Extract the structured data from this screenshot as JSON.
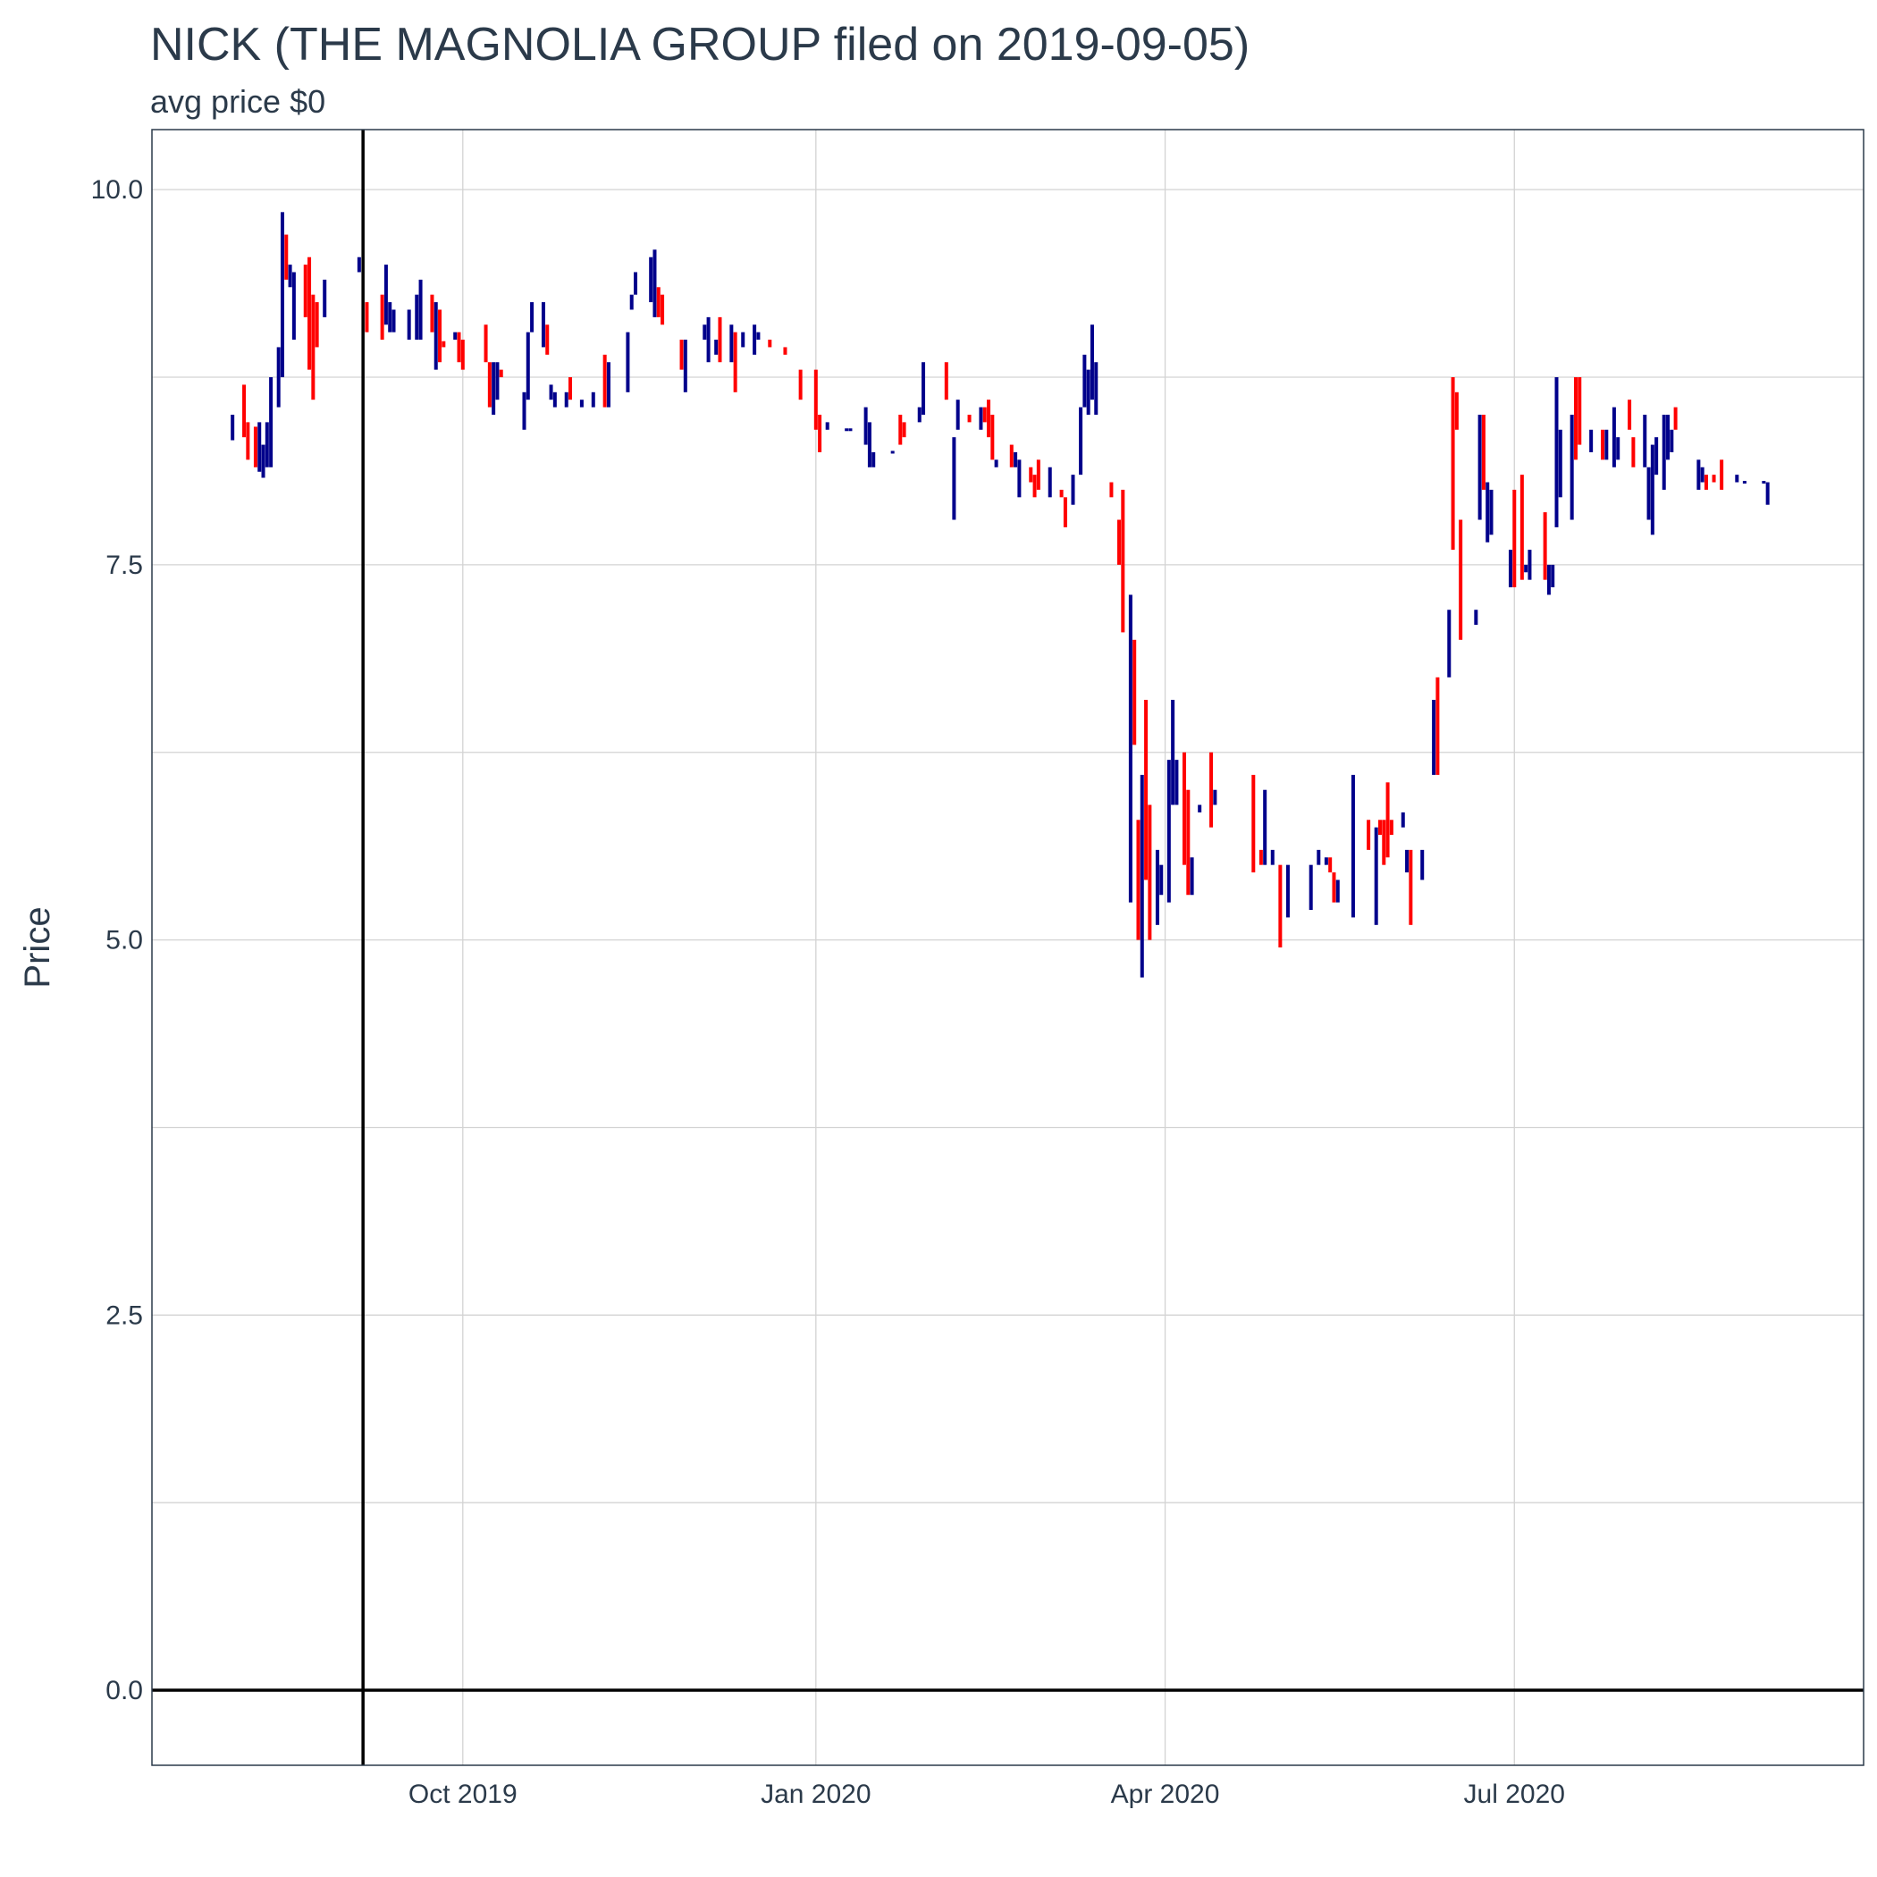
{
  "chart_data": {
    "type": "candlestick",
    "title": "NICK (THE MAGNOLIA GROUP filed on 2019-09-05)",
    "subtitle": "avg price $0",
    "xlabel": "",
    "ylabel": "Price",
    "x_ticks": [
      "Oct 2019",
      "Jan 2020",
      "Apr 2020",
      "Jul 2020"
    ],
    "x_tick_dates": [
      "2019-10-01",
      "2020-01-01",
      "2020-04-01",
      "2020-07-01"
    ],
    "y_ticks": [
      "0.0",
      "2.5",
      "5.0",
      "7.5",
      "10.0"
    ],
    "y_tick_values": [
      0,
      2.5,
      5,
      7.5,
      10
    ],
    "xlim": [
      "2019-07-12",
      "2020-09-30"
    ],
    "ylim": [
      -0.5,
      10.4
    ],
    "grid": true,
    "reference_lines": {
      "vertical_date": "2019-09-05",
      "horizontal_value": 0
    },
    "colors": {
      "up": "#00008b",
      "down": "#ff0000",
      "reference": "#000000",
      "grid": "#d3d3d3",
      "text": "#2b3a4a",
      "border": "#2b3a4a"
    },
    "bars": [
      [
        "2019-08-02",
        8.5,
        8.33,
        "up"
      ],
      [
        "2019-08-05",
        8.7,
        8.35,
        "down"
      ],
      [
        "2019-08-06",
        8.45,
        8.2,
        "down"
      ],
      [
        "2019-08-08",
        8.42,
        8.15,
        "down"
      ],
      [
        "2019-08-09",
        8.45,
        8.12,
        "up"
      ],
      [
        "2019-08-10",
        8.3,
        8.08,
        "up"
      ],
      [
        "2019-08-11",
        8.45,
        8.15,
        "up"
      ],
      [
        "2019-08-12",
        8.75,
        8.15,
        "up"
      ],
      [
        "2019-08-14",
        8.95,
        8.55,
        "up"
      ],
      [
        "2019-08-15",
        9.85,
        8.75,
        "up"
      ],
      [
        "2019-08-16",
        9.7,
        9.4,
        "down"
      ],
      [
        "2019-08-17",
        9.5,
        9.35,
        "up"
      ],
      [
        "2019-08-18",
        9.45,
        9.0,
        "up"
      ],
      [
        "2019-08-21",
        9.5,
        9.15,
        "down"
      ],
      [
        "2019-08-22",
        9.55,
        8.8,
        "down"
      ],
      [
        "2019-08-23",
        9.3,
        8.6,
        "down"
      ],
      [
        "2019-08-24",
        9.25,
        8.95,
        "down"
      ],
      [
        "2019-08-26",
        9.4,
        9.15,
        "up"
      ],
      [
        "2019-09-04",
        9.55,
        9.45,
        "up"
      ],
      [
        "2019-09-06",
        9.25,
        9.05,
        "down"
      ],
      [
        "2019-09-10",
        9.3,
        9.0,
        "down"
      ],
      [
        "2019-09-11",
        9.5,
        9.1,
        "up"
      ],
      [
        "2019-09-12",
        9.25,
        9.05,
        "up"
      ],
      [
        "2019-09-13",
        9.2,
        9.05,
        "up"
      ],
      [
        "2019-09-17",
        9.2,
        9.0,
        "up"
      ],
      [
        "2019-09-19",
        9.3,
        9.0,
        "up"
      ],
      [
        "2019-09-20",
        9.4,
        9.0,
        "up"
      ],
      [
        "2019-09-23",
        9.3,
        9.05,
        "down"
      ],
      [
        "2019-09-24",
        9.25,
        8.8,
        "up"
      ],
      [
        "2019-09-25",
        9.2,
        8.85,
        "down"
      ],
      [
        "2019-09-26",
        8.99,
        8.95,
        "down"
      ],
      [
        "2019-09-29",
        9.05,
        9.0,
        "up"
      ],
      [
        "2019-09-30",
        9.05,
        8.85,
        "down"
      ],
      [
        "2019-10-01",
        9.0,
        8.8,
        "down"
      ],
      [
        "2019-10-07",
        9.1,
        8.85,
        "down"
      ],
      [
        "2019-10-08",
        8.85,
        8.55,
        "down"
      ],
      [
        "2019-10-09",
        8.85,
        8.5,
        "up"
      ],
      [
        "2019-10-10",
        8.85,
        8.6,
        "up"
      ],
      [
        "2019-10-11",
        8.8,
        8.75,
        "down"
      ],
      [
        "2019-10-17",
        8.65,
        8.4,
        "up"
      ],
      [
        "2019-10-18",
        9.05,
        8.6,
        "up"
      ],
      [
        "2019-10-19",
        9.25,
        9.05,
        "up"
      ],
      [
        "2019-10-22",
        9.25,
        8.95,
        "up"
      ],
      [
        "2019-10-23",
        9.1,
        8.9,
        "down"
      ],
      [
        "2019-10-24",
        8.7,
        8.6,
        "up"
      ],
      [
        "2019-10-25",
        8.65,
        8.55,
        "up"
      ],
      [
        "2019-10-28",
        8.65,
        8.55,
        "up"
      ],
      [
        "2019-10-29",
        8.75,
        8.6,
        "down"
      ],
      [
        "2019-11-01",
        8.6,
        8.55,
        "up"
      ],
      [
        "2019-11-04",
        8.65,
        8.55,
        "up"
      ],
      [
        "2019-11-07",
        8.9,
        8.55,
        "down"
      ],
      [
        "2019-11-08",
        8.85,
        8.55,
        "up"
      ],
      [
        "2019-11-13",
        9.05,
        8.65,
        "up"
      ],
      [
        "2019-11-14",
        9.3,
        9.2,
        "up"
      ],
      [
        "2019-11-15",
        9.45,
        9.3,
        "up"
      ],
      [
        "2019-11-19",
        9.55,
        9.25,
        "up"
      ],
      [
        "2019-11-20",
        9.6,
        9.15,
        "up"
      ],
      [
        "2019-11-21",
        9.35,
        9.15,
        "down"
      ],
      [
        "2019-11-22",
        9.3,
        9.1,
        "down"
      ],
      [
        "2019-11-27",
        9.0,
        8.8,
        "down"
      ],
      [
        "2019-11-28",
        9.0,
        8.65,
        "up"
      ],
      [
        "2019-12-03",
        9.1,
        9.0,
        "up"
      ],
      [
        "2019-12-04",
        9.15,
        8.85,
        "up"
      ],
      [
        "2019-12-06",
        9.0,
        8.9,
        "up"
      ],
      [
        "2019-12-07",
        9.15,
        8.85,
        "down"
      ],
      [
        "2019-12-10",
        9.1,
        8.85,
        "up"
      ],
      [
        "2019-12-11",
        9.05,
        8.65,
        "down"
      ],
      [
        "2019-12-13",
        9.05,
        8.95,
        "up"
      ],
      [
        "2019-12-16",
        9.1,
        8.9,
        "up"
      ],
      [
        "2019-12-17",
        9.05,
        9.0,
        "up"
      ],
      [
        "2019-12-20",
        9.0,
        8.95,
        "down"
      ],
      [
        "2019-12-24",
        8.95,
        8.9,
        "down"
      ],
      [
        "2019-12-28",
        8.8,
        8.6,
        "down"
      ],
      [
        "2020-01-01",
        8.8,
        8.4,
        "down"
      ],
      [
        "2020-01-02",
        8.5,
        8.25,
        "down"
      ],
      [
        "2020-01-04",
        8.45,
        8.4,
        "up"
      ],
      [
        "2020-01-09",
        8.4,
        8.4,
        "up"
      ],
      [
        "2020-01-10",
        8.4,
        8.4,
        "up"
      ],
      [
        "2020-01-14",
        8.55,
        8.3,
        "up"
      ],
      [
        "2020-01-15",
        8.45,
        8.15,
        "up"
      ],
      [
        "2020-01-16",
        8.25,
        8.15,
        "up"
      ],
      [
        "2020-01-21",
        8.25,
        8.25,
        "up"
      ],
      [
        "2020-01-23",
        8.5,
        8.3,
        "down"
      ],
      [
        "2020-01-24",
        8.45,
        8.35,
        "down"
      ],
      [
        "2020-01-28",
        8.55,
        8.45,
        "up"
      ],
      [
        "2020-01-29",
        8.85,
        8.5,
        "up"
      ],
      [
        "2020-02-04",
        8.85,
        8.6,
        "down"
      ],
      [
        "2020-02-06",
        8.35,
        7.8,
        "up"
      ],
      [
        "2020-02-07",
        8.6,
        8.4,
        "up"
      ],
      [
        "2020-02-10",
        8.5,
        8.45,
        "down"
      ],
      [
        "2020-02-13",
        8.55,
        8.4,
        "up"
      ],
      [
        "2020-02-14",
        8.55,
        8.45,
        "down"
      ],
      [
        "2020-02-15",
        8.6,
        8.35,
        "down"
      ],
      [
        "2020-02-16",
        8.5,
        8.2,
        "down"
      ],
      [
        "2020-02-17",
        8.2,
        8.15,
        "up"
      ],
      [
        "2020-02-21",
        8.3,
        8.15,
        "down"
      ],
      [
        "2020-02-22",
        8.25,
        8.15,
        "up"
      ],
      [
        "2020-02-23",
        8.2,
        7.95,
        "up"
      ],
      [
        "2020-02-26",
        8.15,
        8.05,
        "down"
      ],
      [
        "2020-02-27",
        8.1,
        7.95,
        "down"
      ],
      [
        "2020-02-28",
        8.2,
        8.0,
        "down"
      ],
      [
        "2020-03-02",
        8.15,
        7.95,
        "up"
      ],
      [
        "2020-03-05",
        8.0,
        7.95,
        "down"
      ],
      [
        "2020-03-06",
        7.95,
        7.75,
        "down"
      ],
      [
        "2020-03-08",
        8.1,
        7.9,
        "up"
      ],
      [
        "2020-03-10",
        8.55,
        8.1,
        "up"
      ],
      [
        "2020-03-11",
        8.9,
        8.55,
        "up"
      ],
      [
        "2020-03-12",
        8.8,
        8.5,
        "up"
      ],
      [
        "2020-03-13",
        9.1,
        8.6,
        "up"
      ],
      [
        "2020-03-14",
        8.85,
        8.5,
        "up"
      ],
      [
        "2020-03-18",
        8.05,
        7.95,
        "down"
      ],
      [
        "2020-03-20",
        7.8,
        7.5,
        "down"
      ],
      [
        "2020-03-21",
        8.0,
        7.05,
        "down"
      ],
      [
        "2020-03-23",
        7.3,
        5.25,
        "up"
      ],
      [
        "2020-03-24",
        7.0,
        6.3,
        "down"
      ],
      [
        "2020-03-25",
        5.8,
        5.0,
        "down"
      ],
      [
        "2020-03-26",
        6.1,
        4.75,
        "up"
      ],
      [
        "2020-03-27",
        6.6,
        5.4,
        "down"
      ],
      [
        "2020-03-28",
        5.9,
        5.0,
        "down"
      ],
      [
        "2020-03-30",
        5.6,
        5.1,
        "up"
      ],
      [
        "2020-03-31",
        5.5,
        5.3,
        "up"
      ],
      [
        "2020-04-02",
        6.2,
        5.25,
        "up"
      ],
      [
        "2020-04-03",
        6.6,
        5.9,
        "up"
      ],
      [
        "2020-04-04",
        6.2,
        5.9,
        "up"
      ],
      [
        "2020-04-06",
        6.25,
        5.5,
        "down"
      ],
      [
        "2020-04-07",
        6.0,
        5.3,
        "down"
      ],
      [
        "2020-04-08",
        5.55,
        5.3,
        "up"
      ],
      [
        "2020-04-10",
        5.9,
        5.85,
        "up"
      ],
      [
        "2020-04-13",
        6.25,
        5.75,
        "down"
      ],
      [
        "2020-04-14",
        6.0,
        5.9,
        "up"
      ],
      [
        "2020-04-24",
        6.1,
        5.45,
        "down"
      ],
      [
        "2020-04-26",
        5.6,
        5.5,
        "down"
      ],
      [
        "2020-04-27",
        6.0,
        5.5,
        "up"
      ],
      [
        "2020-04-29",
        5.6,
        5.5,
        "up"
      ],
      [
        "2020-05-01",
        5.5,
        4.95,
        "down"
      ],
      [
        "2020-05-03",
        5.5,
        5.15,
        "up"
      ],
      [
        "2020-05-09",
        5.5,
        5.2,
        "up"
      ],
      [
        "2020-05-11",
        5.6,
        5.5,
        "up"
      ],
      [
        "2020-05-13",
        5.55,
        5.5,
        "up"
      ],
      [
        "2020-05-14",
        5.55,
        5.45,
        "down"
      ],
      [
        "2020-05-15",
        5.45,
        5.25,
        "down"
      ],
      [
        "2020-05-16",
        5.4,
        5.25,
        "up"
      ],
      [
        "2020-05-20",
        6.1,
        5.15,
        "up"
      ],
      [
        "2020-05-24",
        5.8,
        5.6,
        "down"
      ],
      [
        "2020-05-26",
        5.75,
        5.1,
        "up"
      ],
      [
        "2020-05-27",
        5.8,
        5.7,
        "down"
      ],
      [
        "2020-05-28",
        5.8,
        5.5,
        "down"
      ],
      [
        "2020-05-29",
        6.05,
        5.55,
        "down"
      ],
      [
        "2020-05-30",
        5.8,
        5.7,
        "down"
      ],
      [
        "2020-06-02",
        5.85,
        5.75,
        "up"
      ],
      [
        "2020-06-03",
        5.6,
        5.45,
        "up"
      ],
      [
        "2020-06-04",
        5.6,
        5.1,
        "down"
      ],
      [
        "2020-06-07",
        5.6,
        5.4,
        "up"
      ],
      [
        "2020-06-10",
        6.6,
        6.1,
        "up"
      ],
      [
        "2020-06-11",
        6.75,
        6.1,
        "down"
      ],
      [
        "2020-06-14",
        7.2,
        6.75,
        "up"
      ],
      [
        "2020-06-15",
        8.75,
        7.6,
        "down"
      ],
      [
        "2020-06-16",
        8.65,
        8.4,
        "down"
      ],
      [
        "2020-06-17",
        7.8,
        7.0,
        "down"
      ],
      [
        "2020-06-21",
        7.2,
        7.1,
        "up"
      ],
      [
        "2020-06-22",
        8.5,
        7.8,
        "up"
      ],
      [
        "2020-06-23",
        8.5,
        8.0,
        "down"
      ],
      [
        "2020-06-24",
        8.05,
        7.65,
        "up"
      ],
      [
        "2020-06-25",
        8.0,
        7.7,
        "up"
      ],
      [
        "2020-06-30",
        7.6,
        7.35,
        "up"
      ],
      [
        "2020-07-01",
        8.0,
        7.35,
        "down"
      ],
      [
        "2020-07-03",
        8.1,
        7.4,
        "down"
      ],
      [
        "2020-07-04",
        7.5,
        7.45,
        "up"
      ],
      [
        "2020-07-05",
        7.6,
        7.4,
        "up"
      ],
      [
        "2020-07-09",
        7.85,
        7.4,
        "down"
      ],
      [
        "2020-07-10",
        7.5,
        7.3,
        "up"
      ],
      [
        "2020-07-11",
        7.5,
        7.35,
        "up"
      ],
      [
        "2020-07-12",
        8.75,
        7.75,
        "up"
      ],
      [
        "2020-07-13",
        8.4,
        7.95,
        "up"
      ],
      [
        "2020-07-16",
        8.5,
        7.8,
        "up"
      ],
      [
        "2020-07-17",
        8.75,
        8.2,
        "down"
      ],
      [
        "2020-07-18",
        8.75,
        8.3,
        "down"
      ],
      [
        "2020-07-21",
        8.4,
        8.25,
        "up"
      ],
      [
        "2020-07-24",
        8.4,
        8.2,
        "down"
      ],
      [
        "2020-07-25",
        8.4,
        8.2,
        "up"
      ],
      [
        "2020-07-27",
        8.55,
        8.15,
        "up"
      ],
      [
        "2020-07-28",
        8.35,
        8.2,
        "up"
      ],
      [
        "2020-07-31",
        8.6,
        8.4,
        "down"
      ],
      [
        "2020-08-01",
        8.35,
        8.15,
        "down"
      ],
      [
        "2020-08-04",
        8.5,
        8.15,
        "up"
      ],
      [
        "2020-08-05",
        8.15,
        7.8,
        "up"
      ],
      [
        "2020-08-06",
        8.3,
        7.7,
        "up"
      ],
      [
        "2020-08-07",
        8.35,
        8.1,
        "up"
      ],
      [
        "2020-08-09",
        8.5,
        8.0,
        "up"
      ],
      [
        "2020-08-10",
        8.5,
        8.2,
        "up"
      ],
      [
        "2020-08-11",
        8.4,
        8.25,
        "up"
      ],
      [
        "2020-08-12",
        8.55,
        8.4,
        "down"
      ],
      [
        "2020-08-18",
        8.2,
        8.0,
        "up"
      ],
      [
        "2020-08-19",
        8.15,
        8.05,
        "up"
      ],
      [
        "2020-08-20",
        8.1,
        8.0,
        "down"
      ],
      [
        "2020-08-22",
        8.1,
        8.05,
        "down"
      ],
      [
        "2020-08-24",
        8.2,
        8.0,
        "down"
      ],
      [
        "2020-08-28",
        8.1,
        8.05,
        "up"
      ],
      [
        "2020-08-30",
        8.05,
        8.05,
        "up"
      ],
      [
        "2020-09-04",
        8.05,
        8.05,
        "up"
      ],
      [
        "2020-09-05",
        8.05,
        7.9,
        "up"
      ]
    ]
  }
}
